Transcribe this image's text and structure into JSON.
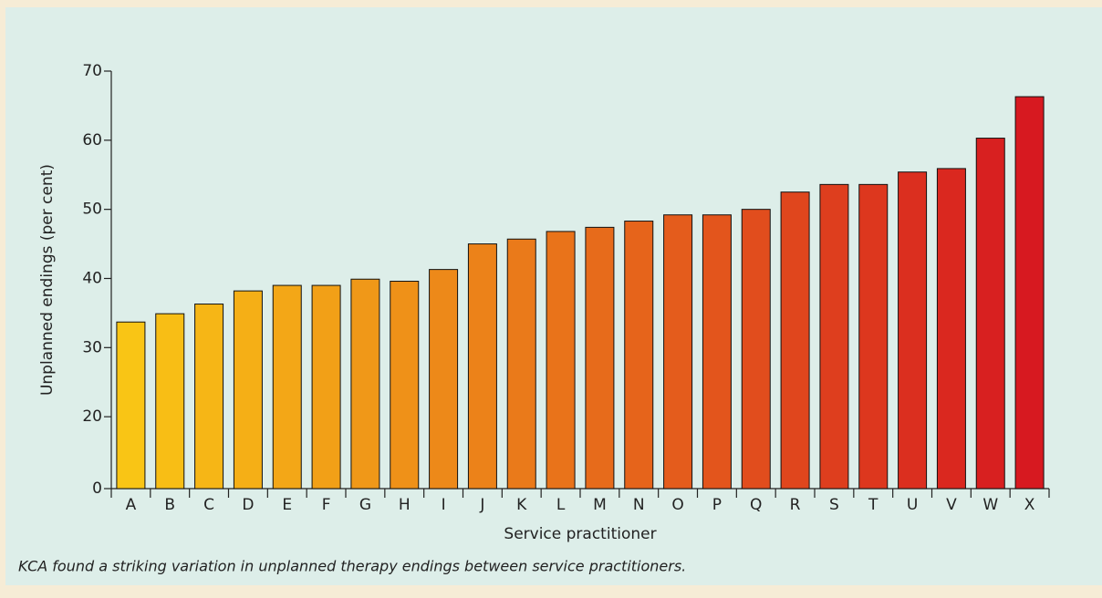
{
  "chart_data": {
    "type": "bar",
    "xlabel": "Service practitioner",
    "ylabel": "Unplanned endings (per cent)",
    "caption": "KCA found a striking variation in unplanned therapy endings between service practitioners.",
    "categories": [
      "A",
      "B",
      "C",
      "D",
      "E",
      "F",
      "G",
      "H",
      "I",
      "J",
      "K",
      "L",
      "M",
      "N",
      "O",
      "P",
      "Q",
      "R",
      "S",
      "T",
      "U",
      "V",
      "W",
      "X"
    ],
    "values": [
      33.7,
      34.9,
      36.3,
      38.2,
      39,
      39,
      39.9,
      39.6,
      41.3,
      45,
      45.7,
      46.8,
      47.4,
      48.3,
      49.2,
      49.2,
      50,
      52.5,
      53.6,
      53.6,
      55.4,
      55.9,
      60.3,
      66.3
    ],
    "colors": [
      "#f9c515",
      "#d71920"
    ],
    "ylim": [
      0,
      70
    ],
    "yticks": [
      0,
      20,
      30,
      40,
      50,
      60,
      70
    ]
  }
}
